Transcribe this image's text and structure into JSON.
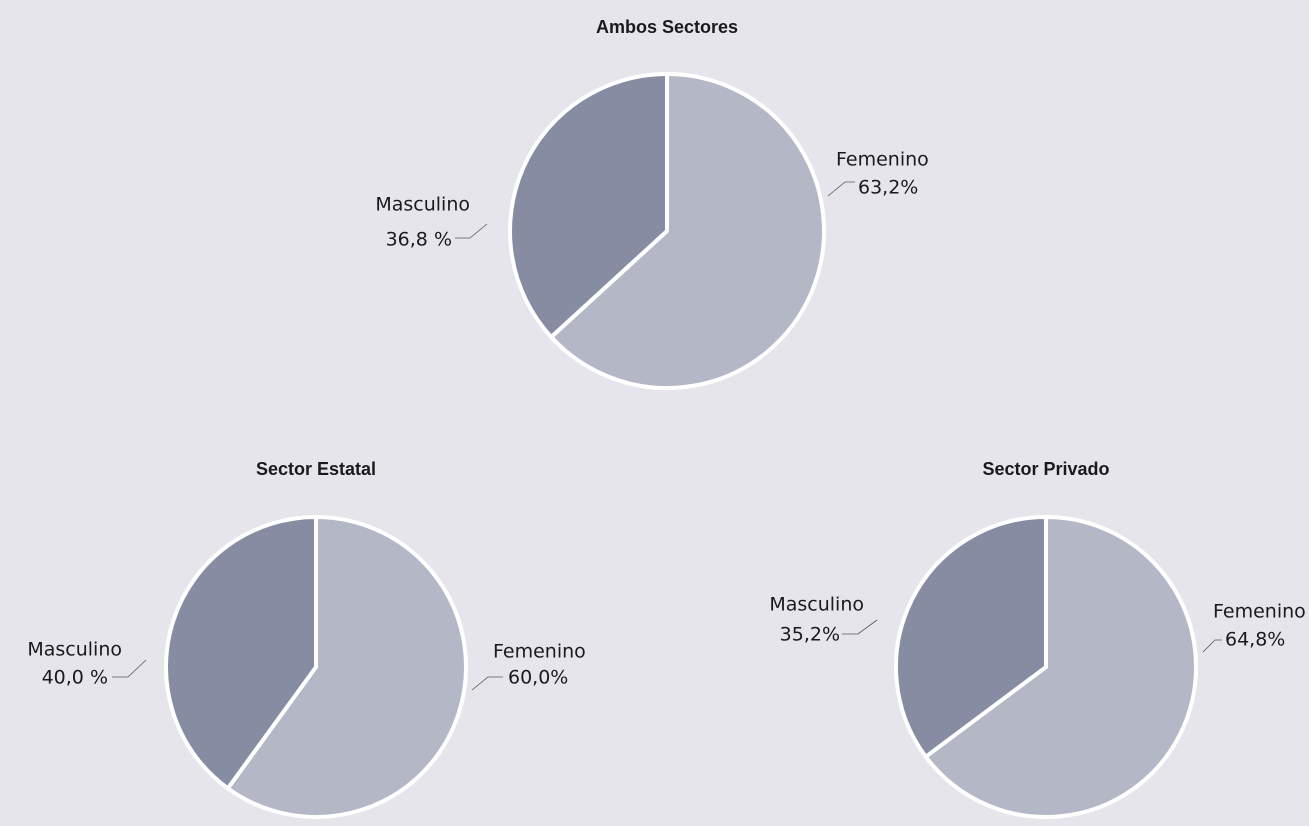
{
  "chart_data": [
    {
      "type": "pie",
      "title": "Ambos Sectores",
      "categories": [
        "Femenino",
        "Masculino"
      ],
      "values": [
        63.2,
        36.8
      ],
      "value_labels": [
        "63,2%",
        "36,8 %"
      ],
      "colors": [
        "#b4b7c6",
        "#868ca2"
      ]
    },
    {
      "type": "pie",
      "title": "Sector Estatal",
      "categories": [
        "Femenino",
        "Masculino"
      ],
      "values": [
        60.0,
        40.0
      ],
      "value_labels": [
        "60,0%",
        "40,0 %"
      ],
      "colors": [
        "#b4b7c6",
        "#868ca2"
      ]
    },
    {
      "type": "pie",
      "title": "Sector Privado",
      "categories": [
        "Femenino",
        "Masculino"
      ],
      "values": [
        64.8,
        35.2
      ],
      "value_labels": [
        "64,8%",
        "35,2%"
      ],
      "colors": [
        "#b4b7c6",
        "#868ca2"
      ]
    }
  ]
}
